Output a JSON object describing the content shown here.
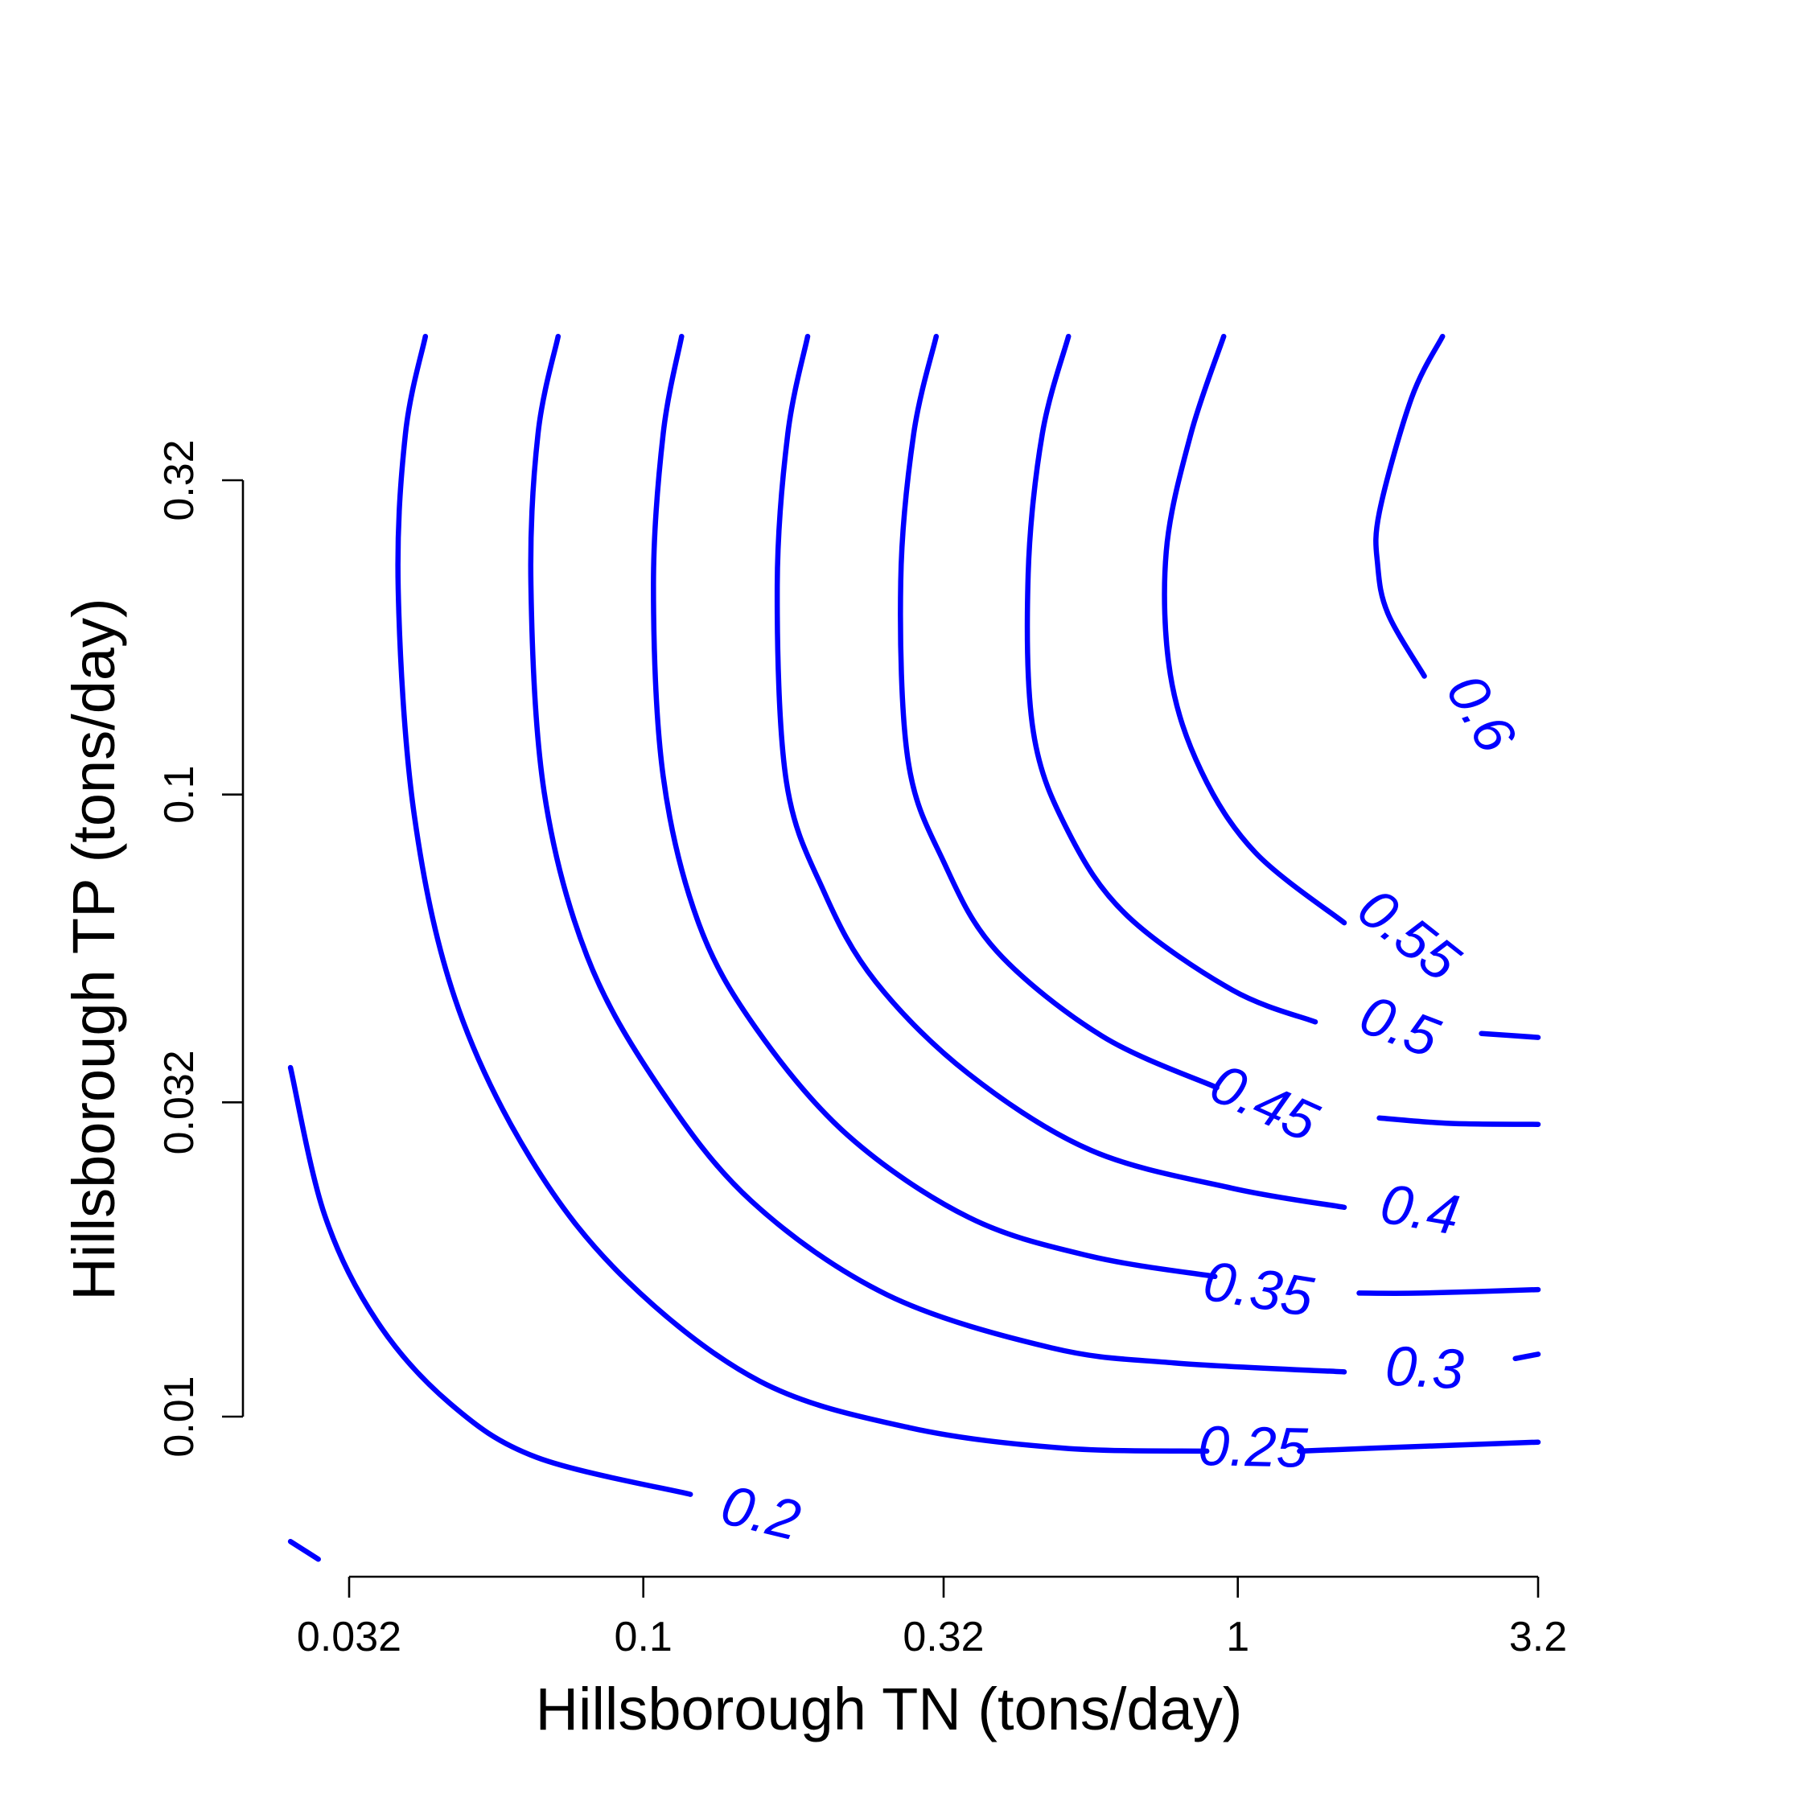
{
  "chart_data": {
    "type": "contour",
    "xlabel": "Hillsborough TN (tons/day)",
    "ylabel": "Hillsborough TP (tons/day)",
    "x_scale": "log",
    "y_scale": "log",
    "xlim": [
      0.025,
      3.2
    ],
    "ylim": [
      0.0075,
      0.55
    ],
    "x_ticks": [
      {
        "value": 0.032,
        "label": "0.032"
      },
      {
        "value": 0.1,
        "label": "0.1"
      },
      {
        "value": 0.32,
        "label": "0.32"
      },
      {
        "value": 1,
        "label": "1"
      },
      {
        "value": 3.2,
        "label": "3.2"
      }
    ],
    "y_ticks": [
      {
        "value": 0.01,
        "label": "0.01"
      },
      {
        "value": 0.032,
        "label": "0.032"
      },
      {
        "value": 0.1,
        "label": "0.1"
      },
      {
        "value": 0.32,
        "label": "0.32"
      }
    ],
    "grid": false,
    "color": "#0000ff",
    "contours": [
      {
        "level": "0.2",
        "points": [
          [
            0.0255,
            0.0364
          ],
          [
            0.0291,
            0.0211
          ],
          [
            0.0357,
            0.0142
          ],
          [
            0.0473,
            0.0105
          ],
          [
            0.0662,
            0.0086
          ],
          [
            0.12,
            0.0075
          ]
        ],
        "label": {
          "text": "0.2",
          "x": 0.157,
          "y": 0.0069
        }
      },
      {
        "level": "0.2",
        "points": [
          [
            0.0255,
            0.0063
          ],
          [
            0.0284,
            0.0059
          ]
        ],
        "label": null
      },
      {
        "level": "0.25",
        "points": [
          [
            0.043,
            0.545
          ],
          [
            0.0398,
            0.38
          ],
          [
            0.0387,
            0.214
          ],
          [
            0.0411,
            0.094
          ],
          [
            0.0482,
            0.047
          ],
          [
            0.0646,
            0.026
          ],
          [
            0.0935,
            0.0166
          ],
          [
            0.157,
            0.0114
          ],
          [
            0.28,
            0.0096
          ],
          [
            0.508,
            0.0089
          ],
          [
            0.887,
            0.0088
          ]
        ],
        "segments_after_label": [
          [
            [
              1.27,
              0.0088
            ],
            [
              1.7,
              0.0089
            ],
            [
              3.2,
              0.0091
            ]
          ]
        ],
        "label": {
          "text": "0.25",
          "x": 1.06,
          "y": 0.0088
        }
      },
      {
        "level": "0.3",
        "points": [
          [
            0.0719,
            0.545
          ],
          [
            0.0665,
            0.38
          ],
          [
            0.0647,
            0.217
          ],
          [
            0.0681,
            0.101
          ],
          [
            0.0804,
            0.055
          ],
          [
            0.106,
            0.034
          ],
          [
            0.152,
            0.0222
          ],
          [
            0.257,
            0.0157
          ],
          [
            0.486,
            0.0129
          ],
          [
            0.781,
            0.0122
          ],
          [
            1.51,
            0.0118
          ]
        ],
        "segments_after_label": [
          [
            [
              2.93,
              0.0124
            ],
            [
              3.2,
              0.0126
            ]
          ]
        ],
        "label": {
          "text": "0.3",
          "x": 2.06,
          "y": 0.0118
        }
      },
      {
        "level": "0.35",
        "points": [
          [
            0.116,
            0.545
          ],
          [
            0.108,
            0.38
          ],
          [
            0.104,
            0.217
          ],
          [
            0.108,
            0.107
          ],
          [
            0.124,
            0.062
          ],
          [
            0.155,
            0.042
          ],
          [
            0.221,
            0.0283
          ],
          [
            0.353,
            0.0209
          ],
          [
            0.566,
            0.0181
          ],
          [
            0.915,
            0.0168
          ]
        ],
        "segments_after_label": [
          [
            [
              1.6,
              0.0158
            ],
            [
              2.04,
              0.0158
            ],
            [
              3.2,
              0.016
            ]
          ]
        ],
        "label": {
          "text": "0.35",
          "x": 1.08,
          "y": 0.0158
        }
      },
      {
        "level": "0.4",
        "points": [
          [
            0.189,
            0.545
          ],
          [
            0.175,
            0.38
          ],
          [
            0.168,
            0.217
          ],
          [
            0.174,
            0.105
          ],
          [
            0.201,
            0.07
          ],
          [
            0.246,
            0.05
          ],
          [
            0.352,
            0.0356
          ],
          [
            0.566,
            0.0268
          ],
          [
            0.976,
            0.0233
          ],
          [
            1.51,
            0.0217
          ]
        ],
        "label": {
          "text": "0.4",
          "x": 2.02,
          "y": 0.0212
        }
      },
      {
        "level": "0.45",
        "points": [
          [
            0.311,
            0.545
          ],
          [
            0.285,
            0.38
          ],
          [
            0.271,
            0.22
          ],
          [
            0.279,
            0.113
          ],
          [
            0.32,
            0.078
          ],
          [
            0.393,
            0.056
          ],
          [
            0.591,
            0.0409
          ],
          [
            0.922,
            0.0338
          ]
        ],
        "segments_after_label": [
          [
            [
              1.73,
              0.0302
            ],
            [
              2.28,
              0.0296
            ],
            [
              3.2,
              0.0295
            ]
          ]
        ],
        "label": {
          "text": "0.45",
          "x": 1.1,
          "y": 0.0315
        }
      },
      {
        "level": "0.5",
        "points": [
          [
            0.519,
            0.545
          ],
          [
            0.469,
            0.38
          ],
          [
            0.444,
            0.226
          ],
          [
            0.453,
            0.126
          ],
          [
            0.519,
            0.087
          ],
          [
            0.65,
            0.064
          ],
          [
            0.979,
            0.0485
          ],
          [
            1.35,
            0.0431
          ]
        ],
        "segments_after_label": [
          [
            [
              2.57,
              0.0413
            ],
            [
              3.2,
              0.0407
            ]
          ]
        ],
        "label": {
          "text": "0.5",
          "x": 1.86,
          "y": 0.0418
        }
      },
      {
        "level": "0.55",
        "points": [
          [
            0.947,
            0.545
          ],
          [
            0.834,
            0.38
          ],
          [
            0.758,
            0.246
          ],
          [
            0.77,
            0.156
          ],
          [
            0.868,
            0.109
          ],
          [
            1.07,
            0.0807
          ],
          [
            1.51,
            0.0622
          ]
        ],
        "label": {
          "text": "0.55",
          "x": 1.92,
          "y": 0.0588
        }
      },
      {
        "level": "0.6",
        "points": [
          [
            2.21,
            0.545
          ],
          [
            1.96,
            0.434
          ],
          [
            1.73,
            0.284
          ],
          [
            1.72,
            0.233
          ],
          [
            1.79,
            0.195
          ],
          [
            2.06,
            0.155
          ]
        ],
        "label": {
          "text": "0.6",
          "x": 2.53,
          "y": 0.134
        }
      }
    ]
  }
}
